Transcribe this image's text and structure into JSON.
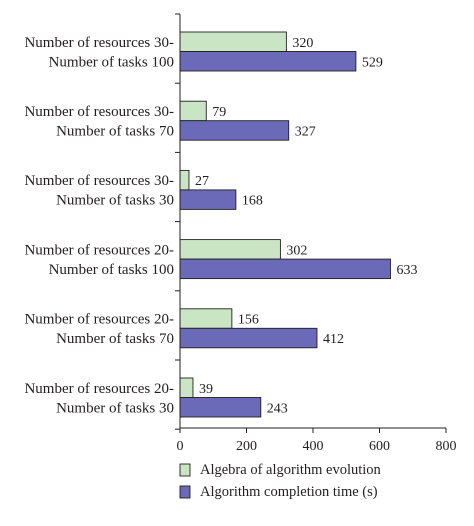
{
  "chart_data": {
    "type": "bar",
    "orientation": "horizontal",
    "categories": [
      [
        "Number of resources 30-",
        "Number of tasks 100"
      ],
      [
        "Number of resources 30-",
        "Number of tasks 70"
      ],
      [
        "Number of resources 30-",
        "Number of tasks 30"
      ],
      [
        "Number of resources 20-",
        "Number of tasks 100"
      ],
      [
        "Number of resources 20-",
        "Number of tasks 70"
      ],
      [
        "Number of resources 20-",
        "Number of tasks 30"
      ]
    ],
    "series": [
      {
        "name": "Algebra of algorithm evolution",
        "values": [
          320,
          79,
          27,
          302,
          156,
          39
        ],
        "color": "#c9e5c3"
      },
      {
        "name": "Algorithm completion time (s)",
        "values": [
          529,
          327,
          168,
          633,
          412,
          243
        ],
        "color": "#6a6ab8"
      }
    ],
    "xlim": [
      0,
      800
    ],
    "xticks": [
      "0",
      "200",
      "400",
      "600",
      "800"
    ],
    "grid": false,
    "legend_position": "bottom",
    "data_labels": true
  }
}
